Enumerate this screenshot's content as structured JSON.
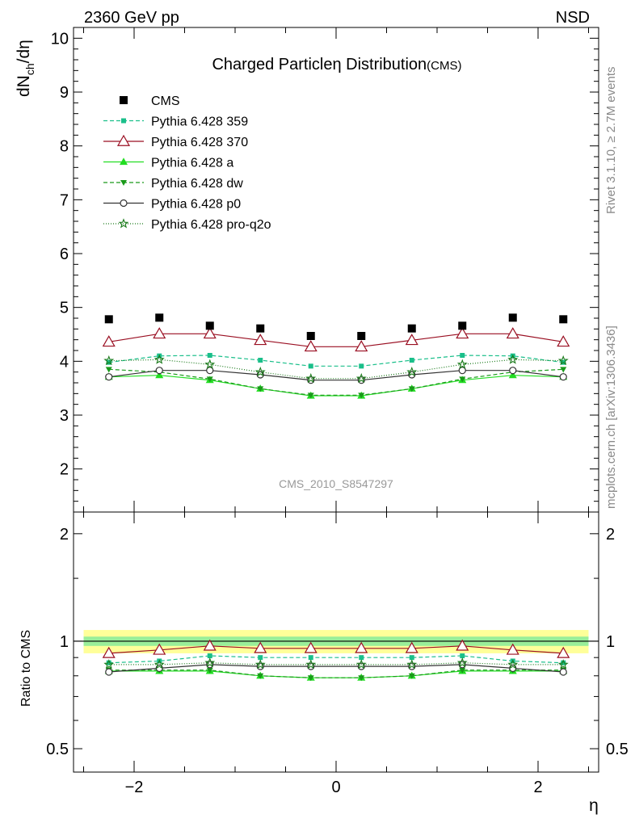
{
  "header": {
    "left": "2360 GeV pp",
    "right": "NSD"
  },
  "side_text": {
    "top": "Rivet 3.1.10, ≥ 2.7M events",
    "bottom": "mcplots.cern.ch [arXiv:1306.3436]"
  },
  "colors": {
    "cms": "#000000",
    "p359": "#1abf8a",
    "p370": "#9a0f22",
    "a": "#22dd22",
    "dw": "#1a9a1a",
    "p0": "#333333",
    "proq2o": "#1a7a1a",
    "band_outer": "#ffff99",
    "band_inner": "#99ee99"
  },
  "chart_data": [
    {
      "type": "line",
      "title": "Charged Particleη Distribution",
      "title_suffix": "(CMS)",
      "watermark": "CMS_2010_S8547297",
      "ylabel": "dNₖₕ/dη",
      "ylabel_parts": {
        "main": "dN",
        "sub": "ch",
        "rest": "/dη"
      },
      "ylim": [
        1.2,
        10.2
      ],
      "xlim": [
        -2.6,
        2.6
      ],
      "yticks": [
        2,
        3,
        4,
        5,
        6,
        7,
        8,
        9,
        10
      ],
      "x": [
        -2.25,
        -1.75,
        -1.25,
        -0.75,
        -0.25,
        0.25,
        0.75,
        1.25,
        1.75,
        2.25
      ],
      "series": [
        {
          "name": "CMS",
          "key": "cms",
          "values": [
            4.78,
            4.81,
            4.66,
            4.61,
            4.47,
            4.47,
            4.61,
            4.66,
            4.81,
            4.78
          ]
        },
        {
          "name": "Pythia 6.428 359",
          "key": "p359",
          "values": [
            3.98,
            4.1,
            4.11,
            4.02,
            3.91,
            3.91,
            4.02,
            4.11,
            4.1,
            3.98
          ]
        },
        {
          "name": "Pythia 6.428 370",
          "key": "p370",
          "values": [
            4.36,
            4.51,
            4.51,
            4.39,
            4.27,
            4.27,
            4.39,
            4.51,
            4.51,
            4.36
          ]
        },
        {
          "name": "Pythia 6.428 a",
          "key": "a",
          "values": [
            3.71,
            3.74,
            3.65,
            3.49,
            3.36,
            3.36,
            3.49,
            3.65,
            3.74,
            3.71
          ]
        },
        {
          "name": "Pythia 6.428 dw",
          "key": "dw",
          "values": [
            3.85,
            3.8,
            3.67,
            3.49,
            3.37,
            3.37,
            3.49,
            3.67,
            3.8,
            3.85
          ]
        },
        {
          "name": "Pythia 6.428 p0",
          "key": "p0",
          "values": [
            3.71,
            3.83,
            3.83,
            3.75,
            3.65,
            3.65,
            3.75,
            3.83,
            3.83,
            3.71
          ]
        },
        {
          "name": "Pythia 6.428 pro-q2o",
          "key": "proq2o",
          "values": [
            4.01,
            4.03,
            3.94,
            3.8,
            3.68,
            3.68,
            3.8,
            3.94,
            4.03,
            4.01
          ]
        }
      ]
    },
    {
      "type": "line",
      "ylabel": "Ratio to CMS",
      "xlabel": "η",
      "ylim": [
        0.43,
        2.3
      ],
      "log_y": true,
      "yticks": [
        0.5,
        1,
        2
      ],
      "xticks": [
        -2,
        0,
        2
      ],
      "xtick_labels": [
        "−2",
        "0",
        "2"
      ],
      "band": {
        "outer": [
          0.925,
          1.075
        ],
        "inner": [
          0.97,
          1.03
        ]
      },
      "x": [
        -2.25,
        -1.75,
        -1.25,
        -0.75,
        -0.25,
        0.25,
        0.75,
        1.25,
        1.75,
        2.25
      ],
      "series": [
        {
          "name": "Pythia 6.428 359",
          "key": "p359",
          "values": [
            0.87,
            0.88,
            0.91,
            0.9,
            0.9,
            0.9,
            0.9,
            0.91,
            0.88,
            0.87
          ]
        },
        {
          "name": "Pythia 6.428 370",
          "key": "p370",
          "values": [
            0.925,
            0.945,
            0.97,
            0.955,
            0.955,
            0.955,
            0.955,
            0.97,
            0.945,
            0.925
          ]
        },
        {
          "name": "Pythia 6.428 a",
          "key": "a",
          "values": [
            0.825,
            0.825,
            0.825,
            0.8,
            0.79,
            0.79,
            0.8,
            0.825,
            0.825,
            0.825
          ]
        },
        {
          "name": "Pythia 6.428 dw",
          "key": "dw",
          "values": [
            0.83,
            0.83,
            0.83,
            0.8,
            0.79,
            0.79,
            0.8,
            0.83,
            0.83,
            0.83
          ]
        },
        {
          "name": "Pythia 6.428 p0",
          "key": "p0",
          "values": [
            0.82,
            0.84,
            0.86,
            0.85,
            0.85,
            0.85,
            0.85,
            0.86,
            0.84,
            0.82
          ]
        },
        {
          "name": "Pythia 6.428 pro-q2o",
          "key": "proq2o",
          "values": [
            0.86,
            0.86,
            0.87,
            0.86,
            0.86,
            0.86,
            0.86,
            0.87,
            0.86,
            0.86
          ]
        }
      ]
    }
  ]
}
